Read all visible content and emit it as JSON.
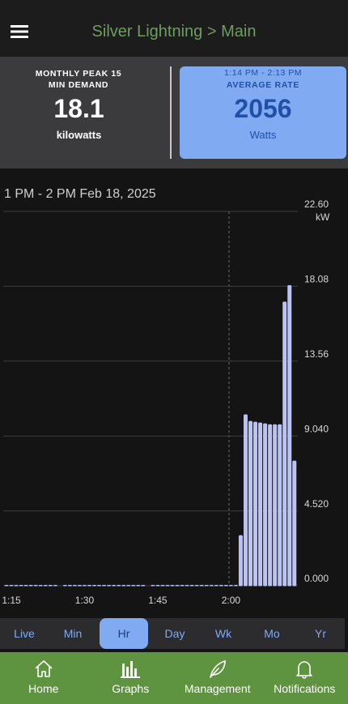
{
  "header": {
    "title": "Silver Lightning > Main"
  },
  "cards": {
    "peak": {
      "label": "MONTHLY PEAK 15 MIN DEMAND",
      "value": 18.1,
      "unit": "kilowatts"
    },
    "average": {
      "period": "1:14 PM - 2:13 PM",
      "label": "AVERAGE RATE",
      "value": 2056,
      "unit": "Watts"
    }
  },
  "chart_data": {
    "type": "bar",
    "title": "1 PM - 2 PM Feb 18, 2025",
    "y_unit": "kW",
    "color": "#b9c3f7",
    "grid": true,
    "categories": [
      null,
      "1:15",
      null,
      null,
      null,
      null,
      null,
      null,
      null,
      null,
      null,
      null,
      null,
      null,
      null,
      null,
      "1:30",
      null,
      null,
      null,
      null,
      null,
      null,
      null,
      null,
      null,
      null,
      null,
      null,
      null,
      null,
      "1:45",
      null,
      null,
      null,
      null,
      null,
      null,
      null,
      null,
      null,
      null,
      null,
      null,
      null,
      null,
      "2:00",
      null,
      null,
      null,
      null,
      null,
      null,
      null,
      null,
      null,
      null,
      null,
      null,
      null
    ],
    "values": [
      0,
      0,
      0,
      0,
      0,
      0,
      0,
      0,
      0,
      0,
      0,
      null,
      0,
      0,
      0,
      0,
      0,
      0,
      0,
      0,
      0,
      0,
      0,
      0,
      0,
      0,
      0,
      0,
      0,
      null,
      0,
      0,
      0,
      0,
      0,
      0,
      0,
      0,
      0,
      0,
      0,
      0,
      0,
      0,
      0,
      0,
      0,
      0,
      3.0,
      10.3,
      9.9,
      9.85,
      9.8,
      9.75,
      9.7,
      9.7,
      9.7,
      17.1,
      18.1,
      7.5
    ],
    "ylim": [
      0,
      22.6
    ],
    "yticks": [
      {
        "value": 0,
        "label": "0.000"
      },
      {
        "value": 4.52,
        "label": "4.520"
      },
      {
        "value": 9.04,
        "label": "9.040"
      },
      13.56,
      18.08,
      {
        "value": 22.6,
        "label": "22.60"
      }
    ]
  },
  "tabs": {
    "items": [
      "Live",
      "Min",
      "Hr",
      "Day",
      "Wk",
      "Mo",
      "Yr"
    ],
    "selected": 2
  },
  "nav": {
    "items": [
      "Home",
      "Graphs",
      "Management",
      "Notifications"
    ]
  }
}
